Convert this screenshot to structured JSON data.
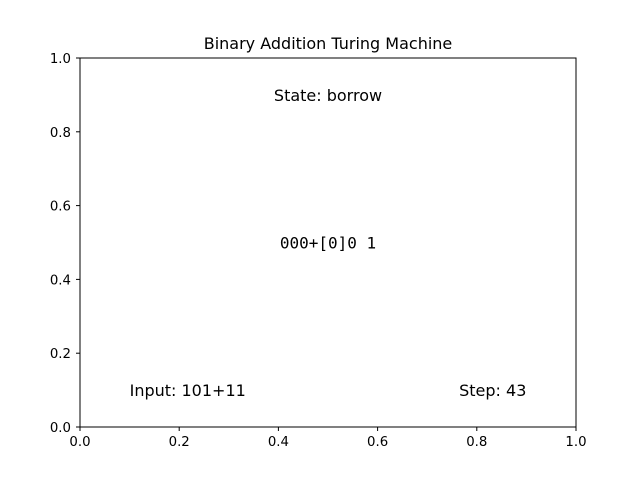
{
  "chart_data": {
    "type": "scatter",
    "title": "Binary Addition Turing Machine",
    "xlabel": "",
    "ylabel": "",
    "xlim": [
      0.0,
      1.0
    ],
    "ylim": [
      0.0,
      1.0
    ],
    "grid": false,
    "x_ticks": [
      {
        "value": 0.0,
        "label": "0.0"
      },
      {
        "value": 0.2,
        "label": "0.2"
      },
      {
        "value": 0.4,
        "label": "0.4"
      },
      {
        "value": 0.6,
        "label": "0.6"
      },
      {
        "value": 0.8,
        "label": "0.8"
      },
      {
        "value": 1.0,
        "label": "1.0"
      }
    ],
    "y_ticks": [
      {
        "value": 0.0,
        "label": "0.0"
      },
      {
        "value": 0.2,
        "label": "0.2"
      },
      {
        "value": 0.4,
        "label": "0.4"
      },
      {
        "value": 0.6,
        "label": "0.6"
      },
      {
        "value": 0.8,
        "label": "0.8"
      },
      {
        "value": 1.0,
        "label": "1.0"
      }
    ],
    "annotations": [
      {
        "name": "state-text",
        "text": "State: borrow",
        "x": 0.5,
        "y": 0.9,
        "anchor": "middle",
        "mono": false
      },
      {
        "name": "tape-text",
        "text": "000+[0]0 1",
        "x": 0.5,
        "y": 0.5,
        "anchor": "middle",
        "mono": true
      },
      {
        "name": "input-text",
        "text": "Input: 101+11",
        "x": 0.1,
        "y": 0.1,
        "anchor": "start",
        "mono": false
      },
      {
        "name": "step-text",
        "text": "Step: 43",
        "x": 0.9,
        "y": 0.1,
        "anchor": "end",
        "mono": false
      }
    ]
  }
}
